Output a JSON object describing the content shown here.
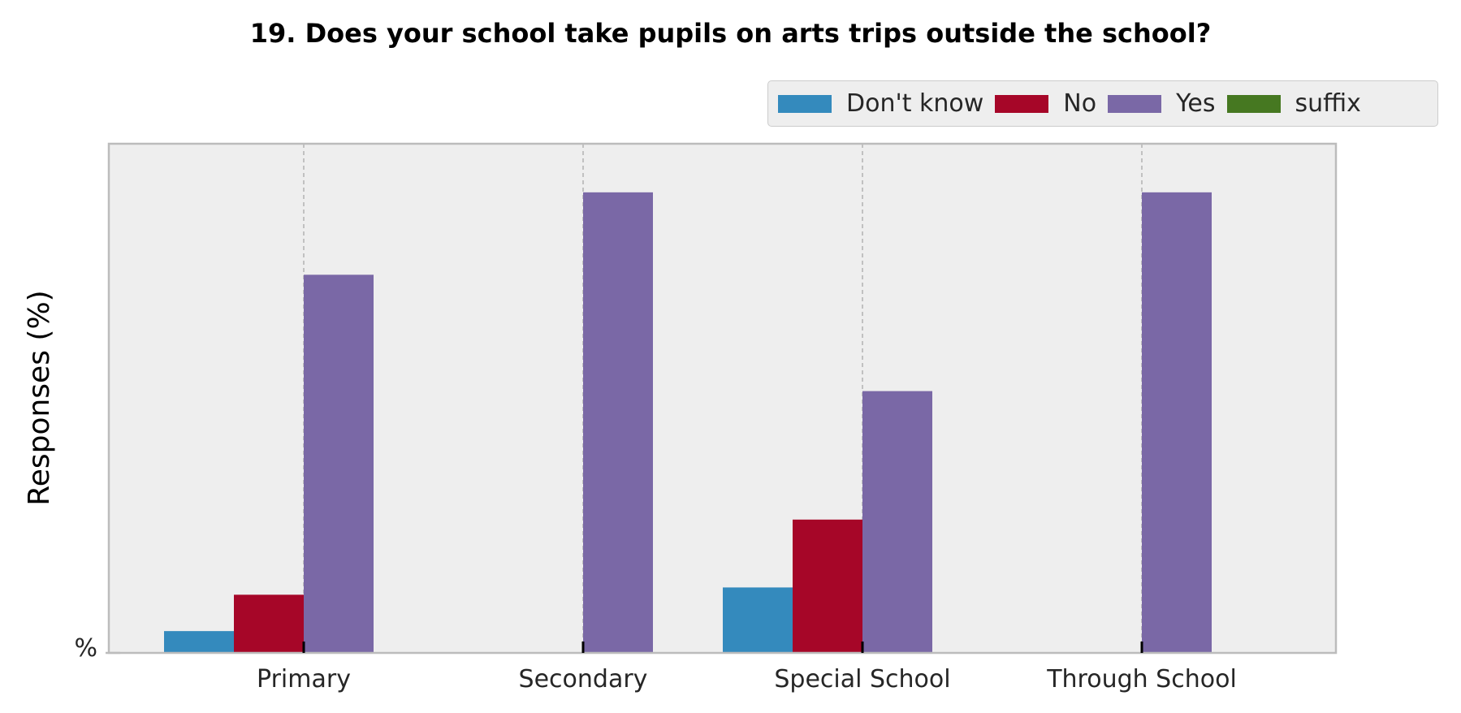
{
  "chart_data": {
    "type": "bar",
    "title": "19. Does your school take pupils on arts trips outside the school?",
    "ylabel": "Responses (%)",
    "y_tick_label": "%",
    "categories": [
      "Primary",
      "Secondary",
      "Special School",
      "Through School"
    ],
    "series": [
      {
        "name": "Don't know",
        "color": "#348abd",
        "values": [
          4.5,
          0,
          13.5,
          0
        ]
      },
      {
        "name": "No",
        "color": "#a60628",
        "values": [
          12,
          0,
          27.5,
          0
        ]
      },
      {
        "name": "Yes",
        "color": "#7a68a6",
        "values": [
          78,
          95,
          54,
          95
        ]
      },
      {
        "name": "suffix",
        "color": "#467821",
        "values": [
          0,
          0,
          0,
          0
        ]
      }
    ],
    "ylim": [
      0,
      100
    ],
    "grid": "vertical-dashed",
    "legend_position": "top-right"
  }
}
